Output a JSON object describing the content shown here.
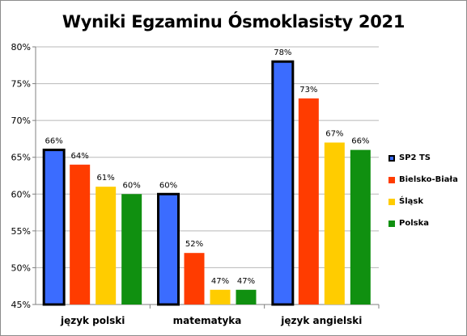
{
  "chart_data": {
    "type": "bar",
    "title": "Wyniki Egzaminu Ósmoklasisty 2021",
    "xlabel": "",
    "ylabel": "",
    "categories": [
      "język polski",
      "matematyka",
      "język angielski"
    ],
    "series": [
      {
        "name": "SP2 TS",
        "values": [
          66,
          60,
          78
        ],
        "color": "#3b6cff",
        "outline": "#000000"
      },
      {
        "name": "Bielsko-Biała",
        "values": [
          64,
          52,
          73
        ],
        "color": "#ff3c00",
        "outline": ""
      },
      {
        "name": "Śląsk",
        "values": [
          61,
          47,
          67
        ],
        "color": "#ffcc00",
        "outline": ""
      },
      {
        "name": "Polska",
        "values": [
          60,
          47,
          66
        ],
        "color": "#109010",
        "outline": ""
      }
    ],
    "data_labels": [
      [
        "66%",
        "60%",
        "78%"
      ],
      [
        "64%",
        "52%",
        "73%"
      ],
      [
        "61%",
        "47%",
        "67%"
      ],
      [
        "60%",
        "47%",
        "66%"
      ]
    ],
    "ylim": [
      45,
      80
    ],
    "yticks": [
      45,
      50,
      55,
      60,
      65,
      70,
      75,
      80
    ],
    "ytick_labels": [
      "45%",
      "50%",
      "55%",
      "60%",
      "65%",
      "70%",
      "75%",
      "80%"
    ],
    "grid": true,
    "legend": "right"
  }
}
